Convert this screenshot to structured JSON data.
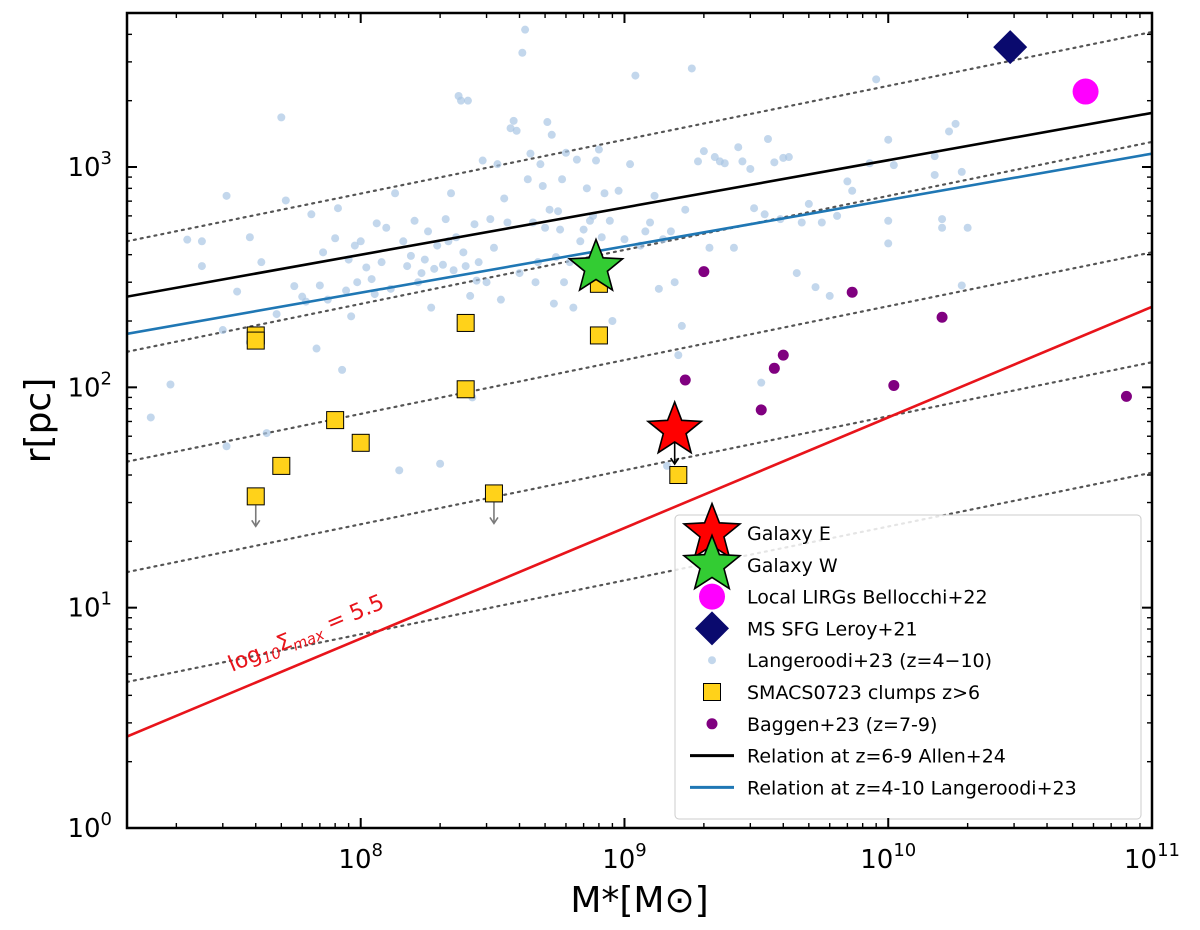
{
  "chart_data": {
    "type": "scatter",
    "xscale": "log",
    "yscale": "log",
    "xlim": [
      13000000,
      100000000000
    ],
    "ylim": [
      1,
      5000
    ],
    "xlabel": "M*[M⊙]",
    "ylabel": "r[pc]",
    "x_ticks": [
      {
        "base": "10",
        "exp": "8",
        "value": 100000000
      },
      {
        "base": "10",
        "exp": "9",
        "value": 1000000000
      },
      {
        "base": "10",
        "exp": "10",
        "value": 10000000000
      },
      {
        "base": "10",
        "exp": "11",
        "value": 100000000000
      }
    ],
    "y_ticks": [
      {
        "base": "10",
        "exp": "0",
        "value": 1
      },
      {
        "base": "10",
        "exp": "1",
        "value": 10
      },
      {
        "base": "10",
        "exp": "2",
        "value": 100
      },
      {
        "base": "10",
        "exp": "3",
        "value": 1000
      }
    ],
    "annotation": {
      "text_prefix": "log",
      "text_sub": "10",
      "text_sigma": "Σ",
      "text_sigma_sub": "max",
      "text_suffix": " = 5.5",
      "color": "#e8141b"
    },
    "lines": [
      {
        "name": "Relation at z=6-9 Allen+24",
        "color": "#000000",
        "x": [
          13000000,
          100000000000
        ],
        "y": [
          258,
          1760
        ]
      },
      {
        "name": "Relation at z=4-10 Langeroodi+23",
        "color": "#1f77b4",
        "x": [
          13000000,
          100000000000
        ],
        "y": [
          175,
          1150
        ]
      },
      {
        "name": "log10 Sigma_max = 5.5",
        "color": "#e8141b",
        "x": [
          13000000,
          100000000000
        ],
        "y": [
          2.6,
          232
        ]
      }
    ],
    "dotted_lines": {
      "color": "#555555",
      "x": [
        13000000,
        100000000000
      ],
      "y_pairs": [
        [
          460,
          4100
        ],
        [
          145,
          1300
        ],
        [
          46,
          410
        ],
        [
          14.5,
          130
        ],
        [
          4.6,
          41
        ]
      ]
    },
    "series": [
      {
        "name": "Galaxy E",
        "marker": "star",
        "color": "#ff0000",
        "points": [
          [
            1550000000,
            64
          ]
        ],
        "upper_limits": [
          [
            1550000000,
            64
          ]
        ]
      },
      {
        "name": "Galaxy W",
        "marker": "star",
        "color": "#33cc33",
        "points": [
          [
            780000000,
            350
          ]
        ]
      },
      {
        "name": "Local LIRGs Bellocchi+22",
        "marker": "circle",
        "color": "#ff00ff",
        "points": [
          [
            56000000000,
            2200
          ]
        ]
      },
      {
        "name": "MS SFG Leroy+21",
        "marker": "diamond",
        "color": "#0a0a6e",
        "points": [
          [
            29000000000,
            3500
          ]
        ]
      },
      {
        "name": "Langeroodi+23 (z=4−10)",
        "marker": "small-circle",
        "color": "#a9c6e4",
        "points": [
          [
            16000000,
            73
          ],
          [
            19000000,
            103
          ],
          [
            22000000,
            468
          ],
          [
            25000000,
            460
          ],
          [
            25000000,
            355
          ],
          [
            30000000,
            182
          ],
          [
            31000000,
            740
          ],
          [
            31000000,
            54
          ],
          [
            34000000,
            272
          ],
          [
            38000000,
            480
          ],
          [
            38000000,
            160
          ],
          [
            42000000,
            370
          ],
          [
            44000000,
            62
          ],
          [
            48000000,
            215
          ],
          [
            50000000,
            1680
          ],
          [
            52000000,
            705
          ],
          [
            56000000,
            288
          ],
          [
            60000000,
            258
          ],
          [
            62000000,
            245
          ],
          [
            65000000,
            610
          ],
          [
            68000000,
            150
          ],
          [
            70000000,
            290
          ],
          [
            72000000,
            410
          ],
          [
            75000000,
            250
          ],
          [
            80000000,
            475
          ],
          [
            82000000,
            650
          ],
          [
            85000000,
            120
          ],
          [
            88000000,
            275
          ],
          [
            90000000,
            380
          ],
          [
            92000000,
            210
          ],
          [
            95000000,
            440
          ],
          [
            97000000,
            300
          ],
          [
            100000000,
            460
          ],
          [
            105000000,
            350
          ],
          [
            110000000,
            310
          ],
          [
            113000000,
            265
          ],
          [
            115000000,
            555
          ],
          [
            120000000,
            370
          ],
          [
            125000000,
            530
          ],
          [
            130000000,
            280
          ],
          [
            135000000,
            760
          ],
          [
            140000000,
            42
          ],
          [
            145000000,
            460
          ],
          [
            150000000,
            355
          ],
          [
            155000000,
            395
          ],
          [
            160000000,
            570
          ],
          [
            165000000,
            300
          ],
          [
            170000000,
            330
          ],
          [
            175000000,
            380
          ],
          [
            180000000,
            510
          ],
          [
            185000000,
            230
          ],
          [
            190000000,
            345
          ],
          [
            195000000,
            440
          ],
          [
            200000000,
            45
          ],
          [
            205000000,
            360
          ],
          [
            210000000,
            580
          ],
          [
            215000000,
            460
          ],
          [
            220000000,
            760
          ],
          [
            225000000,
            340
          ],
          [
            230000000,
            480
          ],
          [
            235000000,
            2100
          ],
          [
            240000000,
            2000
          ],
          [
            245000000,
            410
          ],
          [
            250000000,
            355
          ],
          [
            255000000,
            2000
          ],
          [
            260000000,
            260
          ],
          [
            265000000,
            90
          ],
          [
            270000000,
            550
          ],
          [
            275000000,
            305
          ],
          [
            280000000,
            370
          ],
          [
            290000000,
            1070
          ],
          [
            300000000,
            300
          ],
          [
            310000000,
            580
          ],
          [
            320000000,
            430
          ],
          [
            330000000,
            1030
          ],
          [
            340000000,
            250
          ],
          [
            350000000,
            720
          ],
          [
            360000000,
            560
          ],
          [
            370000000,
            1500
          ],
          [
            380000000,
            1620
          ],
          [
            390000000,
            1460
          ],
          [
            400000000,
            330
          ],
          [
            410000000,
            3300
          ],
          [
            420000000,
            4200
          ],
          [
            430000000,
            880
          ],
          [
            440000000,
            1150
          ],
          [
            450000000,
            560
          ],
          [
            460000000,
            300
          ],
          [
            470000000,
            370
          ],
          [
            480000000,
            1030
          ],
          [
            490000000,
            820
          ],
          [
            500000000,
            530
          ],
          [
            510000000,
            1600
          ],
          [
            520000000,
            640
          ],
          [
            530000000,
            1400
          ],
          [
            540000000,
            240
          ],
          [
            550000000,
            390
          ],
          [
            560000000,
            630
          ],
          [
            570000000,
            520
          ],
          [
            580000000,
            880
          ],
          [
            590000000,
            300
          ],
          [
            600000000,
            1160
          ],
          [
            620000000,
            370
          ],
          [
            640000000,
            230
          ],
          [
            660000000,
            1080
          ],
          [
            680000000,
            460
          ],
          [
            700000000,
            520
          ],
          [
            720000000,
            800
          ],
          [
            740000000,
            570
          ],
          [
            760000000,
            600
          ],
          [
            780000000,
            1070
          ],
          [
            800000000,
            1200
          ],
          [
            820000000,
            480
          ],
          [
            840000000,
            760
          ],
          [
            860000000,
            300
          ],
          [
            880000000,
            570
          ],
          [
            900000000,
            200
          ],
          [
            950000000,
            780
          ],
          [
            1000000000,
            470
          ],
          [
            1050000000,
            1030
          ],
          [
            1100000000,
            2600
          ],
          [
            1150000000,
            440
          ],
          [
            1200000000,
            510
          ],
          [
            1250000000,
            560
          ],
          [
            1300000000,
            740
          ],
          [
            1350000000,
            280
          ],
          [
            1400000000,
            470
          ],
          [
            1450000000,
            44
          ],
          [
            1500000000,
            510
          ],
          [
            1550000000,
            300
          ],
          [
            1600000000,
            140
          ],
          [
            1650000000,
            190
          ],
          [
            1700000000,
            640
          ],
          [
            1800000000,
            2800
          ],
          [
            1900000000,
            1060
          ],
          [
            2000000000,
            1180
          ],
          [
            2100000000,
            430
          ],
          [
            2200000000,
            1110
          ],
          [
            2300000000,
            1060
          ],
          [
            2400000000,
            1040
          ],
          [
            2600000000,
            430
          ],
          [
            2700000000,
            1230
          ],
          [
            2800000000,
            1060
          ],
          [
            3000000000,
            980
          ],
          [
            3100000000,
            650
          ],
          [
            3300000000,
            105
          ],
          [
            3400000000,
            610
          ],
          [
            3500000000,
            1340
          ],
          [
            3700000000,
            1050
          ],
          [
            3900000000,
            580
          ],
          [
            4000000000,
            1100
          ],
          [
            4200000000,
            1110
          ],
          [
            4500000000,
            330
          ],
          [
            4700000000,
            560
          ],
          [
            5000000000,
            680
          ],
          [
            5300000000,
            285
          ],
          [
            5600000000,
            560
          ],
          [
            6000000000,
            260
          ],
          [
            6400000000,
            600
          ],
          [
            7000000000,
            860
          ],
          [
            7300000000,
            780
          ],
          [
            8500000000,
            1040
          ],
          [
            9000000000,
            2500
          ],
          [
            10000000000,
            1330
          ],
          [
            10500000000,
            1020
          ],
          [
            10000000000,
            570
          ],
          [
            10000000000,
            450
          ],
          [
            15000000000,
            1120
          ],
          [
            15000000000,
            920
          ],
          [
            16000000000,
            580
          ],
          [
            16000000000,
            530
          ],
          [
            17000000000,
            1450
          ],
          [
            18000000000,
            1570
          ],
          [
            19000000000,
            950
          ],
          [
            19000000000,
            290
          ],
          [
            20000000000,
            530
          ]
        ]
      },
      {
        "name": "SMACS0723 clumps z>6",
        "marker": "square",
        "color": "#ffd21a",
        "points": [
          [
            40000000,
            172
          ],
          [
            40000000,
            163
          ],
          [
            40000000,
            32
          ],
          [
            50000000,
            44
          ],
          [
            80000000,
            71
          ],
          [
            100000000,
            56
          ],
          [
            250000000,
            196
          ],
          [
            250000000,
            98
          ],
          [
            320000000,
            33
          ],
          [
            800000000,
            295
          ],
          [
            800000000,
            172
          ],
          [
            1600000000,
            40
          ]
        ],
        "upper_limits": [
          [
            40000000,
            32
          ],
          [
            320000000,
            33
          ]
        ]
      },
      {
        "name": "Baggen+23 (z=7-9)",
        "marker": "filled-circle",
        "color": "#800080",
        "points": [
          [
            1700000000,
            108
          ],
          [
            2000000000,
            335
          ],
          [
            3300000000,
            79
          ],
          [
            3700000000,
            122
          ],
          [
            4000000000,
            140
          ],
          [
            7300000000,
            270
          ],
          [
            10500000000,
            102
          ],
          [
            16000000000,
            208
          ],
          [
            80000000000,
            91
          ]
        ]
      }
    ],
    "legend": {
      "placement": "lower-right",
      "entries": [
        {
          "marker": "star",
          "color": "#ff0000",
          "label": "Galaxy E"
        },
        {
          "marker": "star",
          "color": "#33cc33",
          "label": "Galaxy W"
        },
        {
          "marker": "circle",
          "color": "#ff00ff",
          "label": "Local LIRGs Bellocchi+22"
        },
        {
          "marker": "diamond",
          "color": "#0a0a6e",
          "label": "MS SFG Leroy+21"
        },
        {
          "marker": "small-circle",
          "color": "#a9c6e4",
          "label": "Langeroodi+23 (z=4−10)"
        },
        {
          "marker": "square",
          "color": "#ffd21a",
          "label": "SMACS0723 clumps z>6"
        },
        {
          "marker": "filled-circle",
          "color": "#800080",
          "label": "Baggen+23 (z=7-9)"
        },
        {
          "marker": "line",
          "color": "#000000",
          "label": "Relation at z=6-9 Allen+24"
        },
        {
          "marker": "line",
          "color": "#1f77b4",
          "label": "Relation at z=4-10 Langeroodi+23"
        }
      ]
    }
  }
}
